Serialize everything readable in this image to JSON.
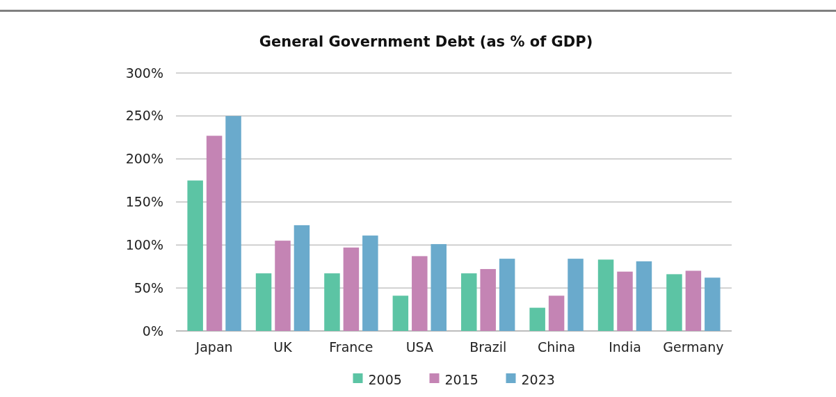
{
  "chart_data": {
    "type": "bar",
    "title": "General Government Debt (as % of GDP)",
    "categories": [
      "Japan",
      "UK",
      "France",
      "USA",
      "Brazil",
      "China",
      "India",
      "Germany"
    ],
    "series": [
      {
        "name": "2005",
        "color": "#5cc4a4",
        "values": [
          175,
          67,
          67,
          41,
          67,
          27,
          83,
          66
        ]
      },
      {
        "name": "2015",
        "color": "#c484b4",
        "values": [
          227,
          105,
          97,
          87,
          72,
          41,
          69,
          70
        ]
      },
      {
        "name": "2023",
        "color": "#6aaacc",
        "values": [
          250,
          123,
          111,
          101,
          84,
          84,
          81,
          62
        ]
      }
    ],
    "ylim": [
      0,
      300
    ],
    "yticks": [
      {
        "value": 0,
        "label": "0%"
      },
      {
        "value": 50,
        "label": "50%"
      },
      {
        "value": 100,
        "label": "100%"
      },
      {
        "value": 150,
        "label": "150%"
      },
      {
        "value": 200,
        "label": "200%"
      },
      {
        "value": 250,
        "label": "250%"
      },
      {
        "value": 300,
        "label": "300%"
      }
    ],
    "grid": "y",
    "legend": "bottom"
  }
}
